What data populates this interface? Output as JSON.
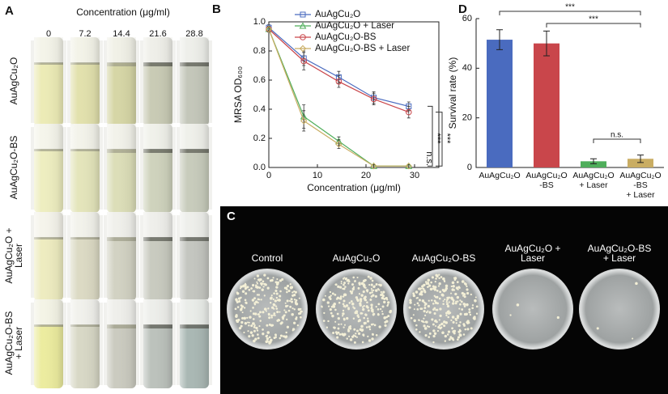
{
  "panel_labels": [
    "A",
    "B",
    "C",
    "D"
  ],
  "panel_a": {
    "title": "Concentration (μg/ml)",
    "columns": [
      "0",
      "7.2",
      "14.4",
      "21.6",
      "28.8"
    ],
    "rows": [
      "AuAgCu₂O",
      "AuAgCu₂O-BS",
      "AuAgCu₂O +\nLaser",
      "AuAgCu₂O-BS\n+ Laser"
    ]
  },
  "panel_c": {
    "plates": [
      "Control",
      "AuAgCu₂O",
      "AuAgCu₂O-BS",
      "AuAgCu₂O +\nLaser",
      "AuAgCu₂O-BS\n+ Laser"
    ]
  },
  "chart_data": [
    {
      "type": "line",
      "xlabel": "Concentration (μg/ml)",
      "ylabel": "MRSA OD₆₀₀",
      "x": [
        0,
        7.2,
        14.4,
        21.6,
        28.8
      ],
      "series": [
        {
          "name": "AuAgCu₂O",
          "color": "#4a6bbf",
          "marker": "square",
          "values": [
            0.96,
            0.75,
            0.62,
            0.48,
            0.42
          ],
          "errors": [
            0.02,
            0.05,
            0.04,
            0.04,
            0.03
          ]
        },
        {
          "name": "AuAgCu₂O + Laser",
          "color": "#4fae5b",
          "marker": "triangle",
          "values": [
            0.95,
            0.35,
            0.18,
            0.01,
            0.01
          ],
          "errors": [
            0.02,
            0.08,
            0.03,
            0.01,
            0.01
          ]
        },
        {
          "name": "AuAgCu₂O-BS",
          "color": "#c9464b",
          "marker": "circle",
          "values": [
            0.95,
            0.73,
            0.59,
            0.47,
            0.38
          ],
          "errors": [
            0.02,
            0.06,
            0.04,
            0.04,
            0.04
          ]
        },
        {
          "name": "AuAgCu₂O-BS + Laser",
          "color": "#c9ad63",
          "marker": "diamond",
          "values": [
            0.95,
            0.32,
            0.16,
            0.01,
            0.01
          ],
          "errors": [
            0.02,
            0.07,
            0.03,
            0.01,
            0.01
          ]
        }
      ],
      "xlim": [
        0,
        35
      ],
      "xticks": [
        0,
        10,
        20,
        30
      ],
      "ylim": [
        0,
        1
      ],
      "yticks": [
        {
          "value": 0,
          "label": "0.0"
        },
        0.2,
        0.4,
        0.6,
        0.8,
        {
          "value": 1,
          "label": "1.0"
        }
      ],
      "legend": "upper right",
      "annotations": [
        "***",
        "n.s.",
        "***"
      ]
    },
    {
      "type": "bar",
      "ylabel": "Survival rate (%)",
      "categories": [
        "AuAgCu₂O",
        "AuAgCu₂O\n-BS",
        "AuAgCu₂O\n+ Laser",
        "AuAgCu₂O\n-BS\n+ Laser"
      ],
      "values": [
        51.5,
        50,
        2.5,
        3.5
      ],
      "errors": [
        4,
        5,
        1,
        1.5
      ],
      "colors": [
        "#4a6bbf",
        "#c9464b",
        "#4fae5b",
        "#c9ad63"
      ],
      "ylim": [
        0,
        60
      ],
      "yticks": [
        0,
        20,
        40,
        60
      ],
      "annotations": [
        "***",
        "***",
        "n.s."
      ]
    }
  ]
}
